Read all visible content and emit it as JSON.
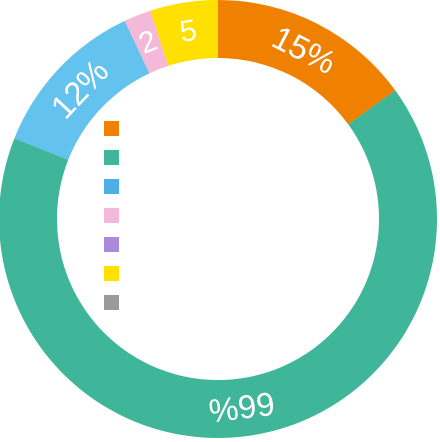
{
  "chart_data": {
    "type": "pie",
    "variant": "donut",
    "start_angle_deg": 0,
    "direction": "clockwise",
    "series": [
      {
        "value": 15,
        "label": "15%",
        "color": "#F08000"
      },
      {
        "value": 66,
        "label": "66%",
        "color": "#3FB699"
      },
      {
        "value": 12,
        "label": "12%",
        "color": "#64C3EE"
      },
      {
        "value": 2,
        "label": "2",
        "color": "#F4B8D8"
      },
      {
        "value": 5,
        "label": "5",
        "color": "#FFE000"
      }
    ],
    "legend": {
      "placement": "inside-left",
      "entries": [
        {
          "color": "#F08000"
        },
        {
          "color": "#3FB699"
        },
        {
          "color": "#4DAEE8"
        },
        {
          "color": "#F4B8D8"
        },
        {
          "color": "#A98BDB"
        },
        {
          "color": "#FFE000"
        },
        {
          "color": "#9A9A9A"
        }
      ]
    }
  }
}
